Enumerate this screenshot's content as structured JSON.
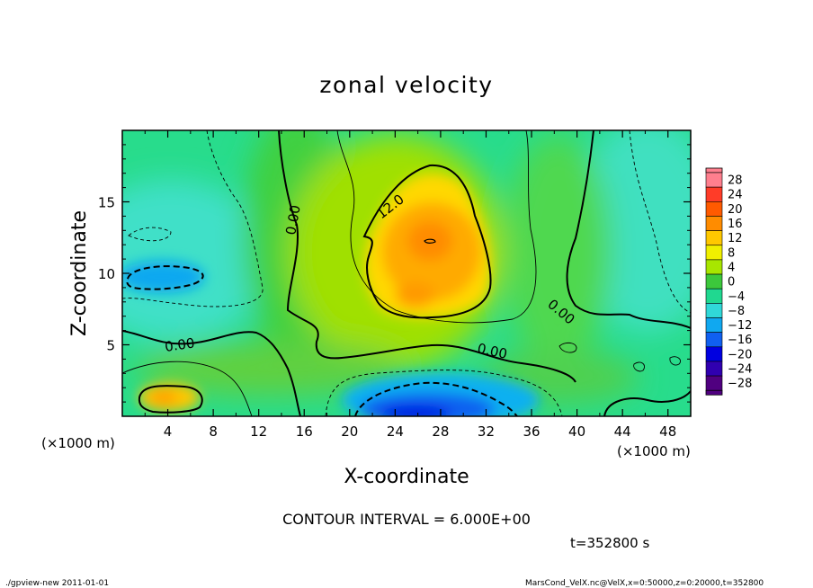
{
  "chart_data": {
    "type": "heatmap",
    "title": "zonal velocity",
    "xlabel": "X-coordinate",
    "ylabel": "Z-coordinate",
    "x_unit_label": "(×1000 m)",
    "x_unit_label_right": "(×1000 m)",
    "x_ticks": [
      "4",
      "8",
      "12",
      "16",
      "20",
      "24",
      "28",
      "32",
      "36",
      "40",
      "44",
      "48"
    ],
    "x_tick_values": [
      4,
      8,
      12,
      16,
      20,
      24,
      28,
      32,
      36,
      40,
      44,
      48
    ],
    "y_ticks": [
      "5",
      "10",
      "15"
    ],
    "y_tick_values": [
      5,
      10,
      15
    ],
    "xlim": [
      0,
      50
    ],
    "ylim": [
      0,
      20
    ],
    "colorbar": {
      "labels": [
        "28",
        "24",
        "20",
        "16",
        "12",
        "8",
        "4",
        "0",
        "−4",
        "−8",
        "−12",
        "−16",
        "−20",
        "−24",
        "−28"
      ],
      "levels": [
        28,
        24,
        20,
        16,
        12,
        8,
        4,
        0,
        -4,
        -8,
        -12,
        -16,
        -20,
        -24,
        -28
      ],
      "colors": [
        "#ff7f8e",
        "#ff3c28",
        "#ff5a00",
        "#ff8c00",
        "#ffc800",
        "#f0f000",
        "#a8e600",
        "#3cc83c",
        "#20d890",
        "#30d8d8",
        "#10a8f0",
        "#1060f0",
        "#0000e0",
        "#3000b0",
        "#500080"
      ],
      "min_color": "#500080",
      "max_color": "#ff7f8e"
    },
    "contour_interval_text": "CONTOUR INTERVAL = 6.000E+00",
    "contour_labels": [
      "0.00",
      "12.0",
      "0.00",
      "0.00",
      "0.00"
    ],
    "time_label": "t=352800 s",
    "features": [
      {
        "name": "jet-core",
        "x": 27,
        "z": 12,
        "value": 21
      },
      {
        "name": "lower-negative",
        "x": 26,
        "z": 1,
        "value": -22
      },
      {
        "name": "left-negative",
        "x": 3,
        "z": 10,
        "value": -12
      },
      {
        "name": "left-bottom-positive",
        "x": 4,
        "z": 1.5,
        "value": 15
      }
    ]
  },
  "footer": {
    "left": "./gpview-new  2011-01-01",
    "right": "MarsCond_VelX.nc@VelX,x=0:50000,z=0:20000,t=352800"
  }
}
